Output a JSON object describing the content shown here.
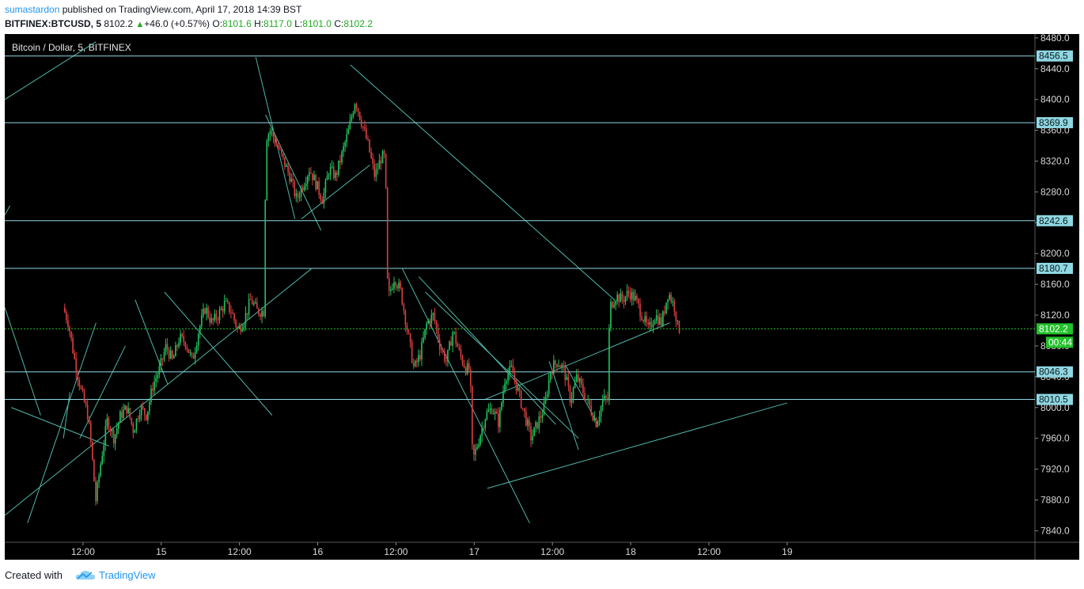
{
  "header": {
    "author": "sumastardon",
    "published_text": " published on TradingView.com, April 17, 2018 14:39 BST",
    "symbol": "BITFINEX:BTCUSD, 5",
    "last_price": "8102.2",
    "change": "+46.0 (+0.57%)",
    "ohlc": [
      {
        "k": "O:",
        "v": "8101.6"
      },
      {
        "k": "H:",
        "v": "8117.0"
      },
      {
        "k": "L:",
        "v": "8101.0"
      },
      {
        "k": "C:",
        "v": "8102.2"
      }
    ]
  },
  "footer": {
    "created_with": "Created with",
    "brand": "TradingView"
  },
  "chart_data": {
    "type": "candlestick",
    "title": "Bitcoin / Dollar, 5, BITFINEX",
    "ylim": [
      7825,
      8485
    ],
    "y_ticks": [
      7840.0,
      7880.0,
      7920.0,
      7960.0,
      8000.0,
      8040.0,
      8080.0,
      8120.0,
      8160.0,
      8200.0,
      8240.0,
      8280.0,
      8320.0,
      8360.0,
      8400.0,
      8440.0,
      8480.0
    ],
    "x_range_hours": [
      0,
      158
    ],
    "x_ticks": [
      {
        "label": "12:00",
        "hour": 12
      },
      {
        "label": "15",
        "hour": 24
      },
      {
        "label": "12:00",
        "hour": 36
      },
      {
        "label": "16",
        "hour": 48
      },
      {
        "label": "12:00",
        "hour": 60
      },
      {
        "label": "17",
        "hour": 72
      },
      {
        "label": "12:00",
        "hour": 84
      },
      {
        "label": "18",
        "hour": 96
      },
      {
        "label": "12:00",
        "hour": 108
      },
      {
        "label": "19",
        "hour": 120
      }
    ],
    "price_path": [
      [
        9.2,
        8130
      ],
      [
        10,
        8110
      ],
      [
        11,
        8060
      ],
      [
        12,
        8020
      ],
      [
        13,
        7990
      ],
      [
        13.5,
        7950
      ],
      [
        14.2,
        7880
      ],
      [
        15,
        7930
      ],
      [
        16,
        7985
      ],
      [
        17,
        7960
      ],
      [
        18,
        7990
      ],
      [
        19,
        8000
      ],
      [
        20,
        7970
      ],
      [
        21,
        8000
      ],
      [
        22,
        7990
      ],
      [
        23,
        8030
      ],
      [
        24,
        8050
      ],
      [
        25,
        8080
      ],
      [
        26,
        8060
      ],
      [
        27,
        8090
      ],
      [
        28,
        8085
      ],
      [
        29,
        8060
      ],
      [
        30,
        8100
      ],
      [
        31,
        8130
      ],
      [
        32,
        8110
      ],
      [
        33,
        8120
      ],
      [
        34,
        8135
      ],
      [
        35,
        8125
      ],
      [
        36,
        8100
      ],
      [
        37,
        8115
      ],
      [
        38,
        8140
      ],
      [
        39,
        8125
      ],
      [
        40,
        8125
      ],
      [
        40.3,
        8350
      ],
      [
        41,
        8360
      ],
      [
        42,
        8340
      ],
      [
        43,
        8320
      ],
      [
        44,
        8300
      ],
      [
        45,
        8270
      ],
      [
        46,
        8290
      ],
      [
        47,
        8310
      ],
      [
        48,
        8290
      ],
      [
        49,
        8270
      ],
      [
        50,
        8310
      ],
      [
        51,
        8300
      ],
      [
        52,
        8330
      ],
      [
        53,
        8360
      ],
      [
        54,
        8400
      ],
      [
        55,
        8370
      ],
      [
        56,
        8340
      ],
      [
        57,
        8300
      ],
      [
        58,
        8325
      ],
      [
        58.6,
        8325
      ],
      [
        59,
        8140
      ],
      [
        60,
        8170
      ],
      [
        61,
        8150
      ],
      [
        62,
        8100
      ],
      [
        63,
        8050
      ],
      [
        64,
        8070
      ],
      [
        65,
        8110
      ],
      [
        66,
        8120
      ],
      [
        67,
        8080
      ],
      [
        68,
        8060
      ],
      [
        69,
        8100
      ],
      [
        70,
        8070
      ],
      [
        71,
        8050
      ],
      [
        71.6,
        8050
      ],
      [
        72,
        7930
      ],
      [
        73,
        7960
      ],
      [
        74,
        7990
      ],
      [
        75,
        8000
      ],
      [
        76,
        7980
      ],
      [
        77,
        8040
      ],
      [
        78,
        8050
      ],
      [
        79,
        8020
      ],
      [
        80,
        7990
      ],
      [
        81,
        7960
      ],
      [
        82,
        7980
      ],
      [
        83,
        8000
      ],
      [
        84,
        8050
      ],
      [
        85,
        8060
      ],
      [
        86,
        8050
      ],
      [
        87,
        8010
      ],
      [
        88,
        8040
      ],
      [
        89,
        8020
      ],
      [
        90,
        8000
      ],
      [
        91,
        7980
      ],
      [
        92,
        8010
      ],
      [
        92.8,
        8010
      ],
      [
        93,
        8130
      ],
      [
        94,
        8145
      ],
      [
        95,
        8140
      ],
      [
        96,
        8150
      ],
      [
        97,
        8140
      ],
      [
        98,
        8120
      ],
      [
        99,
        8100
      ],
      [
        100,
        8120
      ],
      [
        101,
        8110
      ],
      [
        102,
        8150
      ],
      [
        103,
        8130
      ],
      [
        103.5,
        8102.2
      ]
    ],
    "horizontal_levels": [
      {
        "price": 8456.5,
        "label": "8456.5"
      },
      {
        "price": 8369.9,
        "label": "8369.9"
      },
      {
        "price": 8242.6,
        "label": "8242.6"
      },
      {
        "price": 8180.7,
        "label": "8180.7"
      },
      {
        "price": 8046.3,
        "label": "8046.3"
      },
      {
        "price": 8010.5,
        "label": "8010.5"
      }
    ],
    "current_price": {
      "price": 8102.2,
      "label": "8102.2",
      "countdown": "00:44"
    },
    "trendlines": [
      [
        [
          0,
          8400
        ],
        [
          14,
          8475
        ]
      ],
      [
        [
          0,
          8250
        ],
        [
          0.8,
          8262
        ]
      ],
      [
        [
          0,
          7860
        ],
        [
          47,
          8180
        ]
      ],
      [
        [
          0,
          8130
        ],
        [
          5.5,
          7990
        ]
      ],
      [
        [
          3.5,
          7850
        ],
        [
          14,
          8110
        ]
      ],
      [
        [
          11.5,
          7960
        ],
        [
          18.5,
          8080
        ]
      ],
      [
        [
          10,
          8020
        ],
        [
          9,
          7960
        ]
      ],
      [
        [
          16,
          7950
        ],
        [
          1,
          8000
        ]
      ],
      [
        [
          20,
          8140
        ],
        [
          25,
          8030
        ]
      ],
      [
        [
          24.5,
          8150
        ],
        [
          41,
          7990
        ]
      ],
      [
        [
          38.5,
          8455
        ],
        [
          44.5,
          8245
        ]
      ],
      [
        [
          40,
          8380
        ],
        [
          48.5,
          8230
        ]
      ],
      [
        [
          45.5,
          8245
        ],
        [
          56,
          8315
        ]
      ],
      [
        [
          53,
          8445
        ],
        [
          93.5,
          8140
        ]
      ],
      [
        [
          61,
          8180
        ],
        [
          80.5,
          7850
        ]
      ],
      [
        [
          63.5,
          8170
        ],
        [
          84.5,
          7978
        ]
      ],
      [
        [
          64.5,
          8150
        ],
        [
          88,
          7960
        ]
      ],
      [
        [
          74,
          7895
        ],
        [
          120,
          8006
        ]
      ],
      [
        [
          73.5,
          8010
        ],
        [
          102,
          8110
        ]
      ],
      [
        [
          83.5,
          8060
        ],
        [
          88,
          7945
        ]
      ],
      [
        [
          86,
          8055
        ],
        [
          91,
          7978
        ]
      ]
    ]
  },
  "colors": {
    "background": "#000000",
    "candle_up": "#22c55e",
    "candle_down": "#d94040",
    "level_line": "#8fd7e2",
    "trendline": "#4fb7a8",
    "current_price": "#22c22a",
    "axis_text": "#d8d8d8"
  }
}
